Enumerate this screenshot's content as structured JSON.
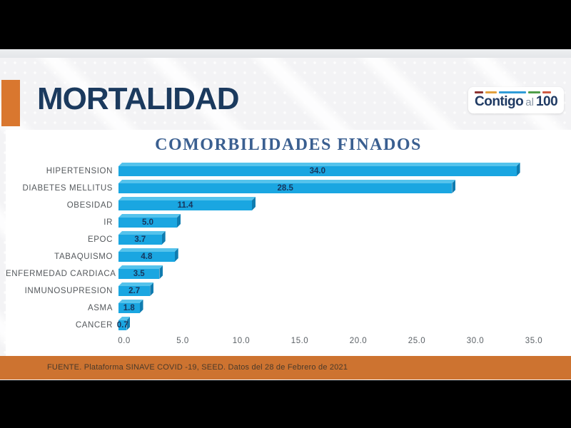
{
  "header": {
    "title": "MORTALIDAD",
    "logo": {
      "contigo": "Contigo",
      "al": "al",
      "num": "100"
    }
  },
  "chart_data": {
    "type": "bar",
    "orientation": "horizontal",
    "title": "COMORBILIDADES FINADOS",
    "categories": [
      "HIPERTENSION",
      "DIABETES MELLITUS",
      "OBESIDAD",
      "IR",
      "EPOC",
      "TABAQUISMO",
      "ENFERMEDAD CARDIACA",
      "INMUNOSUPRESION",
      "ASMA",
      "CANCER"
    ],
    "values": [
      34.0,
      28.5,
      11.4,
      5.0,
      3.7,
      4.8,
      3.5,
      2.7,
      1.8,
      0.7
    ],
    "data_labels": [
      "34.0",
      "28.5",
      "11.4",
      "5.0",
      "3.7",
      "4.8",
      "3.5",
      "2.7",
      "1.8",
      "0.7"
    ],
    "x_ticks": [
      "0.0",
      "5.0",
      "10.0",
      "15.0",
      "20.0",
      "25.0",
      "30.0",
      "35.0"
    ],
    "xlim": [
      0,
      35
    ],
    "grid": false,
    "legend": "none",
    "bar_color": "#1aa6e1",
    "bar_top_color": "#55c3ec",
    "bar_side_color": "#0f7cb0",
    "value_label_color": "#17365d"
  },
  "footer": {
    "source": "FUENTE. Plataforma SINAVE COVID -19, SEED. Datos del 28 de Febrero de 2021"
  },
  "colors": {
    "accent_orange": "#d9772f",
    "footer_orange": "#cd7330",
    "title_navy": "#1b3a5e",
    "chart_title_blue": "#3a5f90"
  }
}
